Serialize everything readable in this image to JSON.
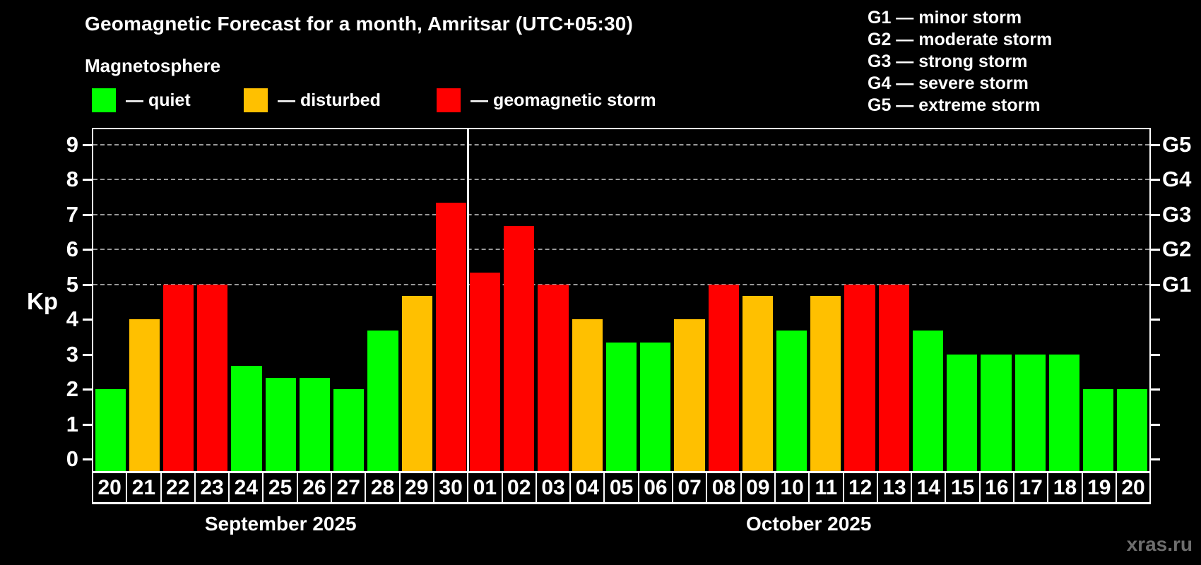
{
  "header": {
    "title": "Geomagnetic Forecast for a month, Amritsar (UTC+05:30)",
    "subtitle": "Magnetosphere"
  },
  "legend": {
    "items": [
      {
        "status": "quiet",
        "label": "— quiet"
      },
      {
        "status": "disturbed",
        "label": "— disturbed"
      },
      {
        "status": "storm",
        "label": "— geomagnetic storm"
      }
    ]
  },
  "g_scale_legend": [
    "G1 — minor storm",
    "G2 — moderate storm",
    "G3 — strong storm",
    "G4 — severe storm",
    "G5 — extreme storm"
  ],
  "colors": {
    "quiet": "#00ff00",
    "disturbed": "#ffc000",
    "storm": "#ff0000",
    "grid": "#999999",
    "axis": "#ffffff",
    "watermark": "#6e6e6e"
  },
  "chart_data": {
    "type": "bar",
    "ylabel": "Kp",
    "ylim": [
      0,
      9.4
    ],
    "yticks": [
      0,
      1,
      2,
      3,
      4,
      5,
      6,
      7,
      8,
      9
    ],
    "gridlines_kp": [
      5,
      6,
      7,
      8,
      9
    ],
    "grid": "dashed",
    "right_axis_labels": [
      {
        "label": "G1",
        "kp": 5
      },
      {
        "label": "G2",
        "kp": 6
      },
      {
        "label": "G3",
        "kp": 7
      },
      {
        "label": "G4",
        "kp": 8
      },
      {
        "label": "G5",
        "kp": 9
      }
    ],
    "months": [
      {
        "label": "September 2025",
        "days": [
          {
            "date": "20",
            "kp": 2.0,
            "status": "quiet"
          },
          {
            "date": "21",
            "kp": 4.0,
            "status": "disturbed"
          },
          {
            "date": "22",
            "kp": 5.0,
            "status": "storm"
          },
          {
            "date": "23",
            "kp": 5.0,
            "status": "storm"
          },
          {
            "date": "24",
            "kp": 2.67,
            "status": "quiet"
          },
          {
            "date": "25",
            "kp": 2.33,
            "status": "quiet"
          },
          {
            "date": "26",
            "kp": 2.33,
            "status": "quiet"
          },
          {
            "date": "27",
            "kp": 2.0,
            "status": "quiet"
          },
          {
            "date": "28",
            "kp": 3.67,
            "status": "quiet"
          },
          {
            "date": "29",
            "kp": 4.67,
            "status": "disturbed"
          },
          {
            "date": "30",
            "kp": 7.33,
            "status": "storm"
          }
        ]
      },
      {
        "label": "October 2025",
        "days": [
          {
            "date": "01",
            "kp": 5.33,
            "status": "storm"
          },
          {
            "date": "02",
            "kp": 6.67,
            "status": "storm"
          },
          {
            "date": "03",
            "kp": 5.0,
            "status": "storm"
          },
          {
            "date": "04",
            "kp": 4.0,
            "status": "disturbed"
          },
          {
            "date": "05",
            "kp": 3.33,
            "status": "quiet"
          },
          {
            "date": "06",
            "kp": 3.33,
            "status": "quiet"
          },
          {
            "date": "07",
            "kp": 4.0,
            "status": "disturbed"
          },
          {
            "date": "08",
            "kp": 5.0,
            "status": "storm"
          },
          {
            "date": "09",
            "kp": 4.67,
            "status": "disturbed"
          },
          {
            "date": "10",
            "kp": 3.67,
            "status": "quiet"
          },
          {
            "date": "11",
            "kp": 4.67,
            "status": "disturbed"
          },
          {
            "date": "12",
            "kp": 5.0,
            "status": "storm"
          },
          {
            "date": "13",
            "kp": 5.0,
            "status": "storm"
          },
          {
            "date": "14",
            "kp": 3.67,
            "status": "quiet"
          },
          {
            "date": "15",
            "kp": 3.0,
            "status": "quiet"
          },
          {
            "date": "16",
            "kp": 3.0,
            "status": "quiet"
          },
          {
            "date": "17",
            "kp": 3.0,
            "status": "quiet"
          },
          {
            "date": "18",
            "kp": 3.0,
            "status": "quiet"
          },
          {
            "date": "19",
            "kp": 2.0,
            "status": "quiet"
          },
          {
            "date": "20",
            "kp": 2.0,
            "status": "quiet"
          }
        ]
      }
    ]
  },
  "watermark": "xras.ru"
}
